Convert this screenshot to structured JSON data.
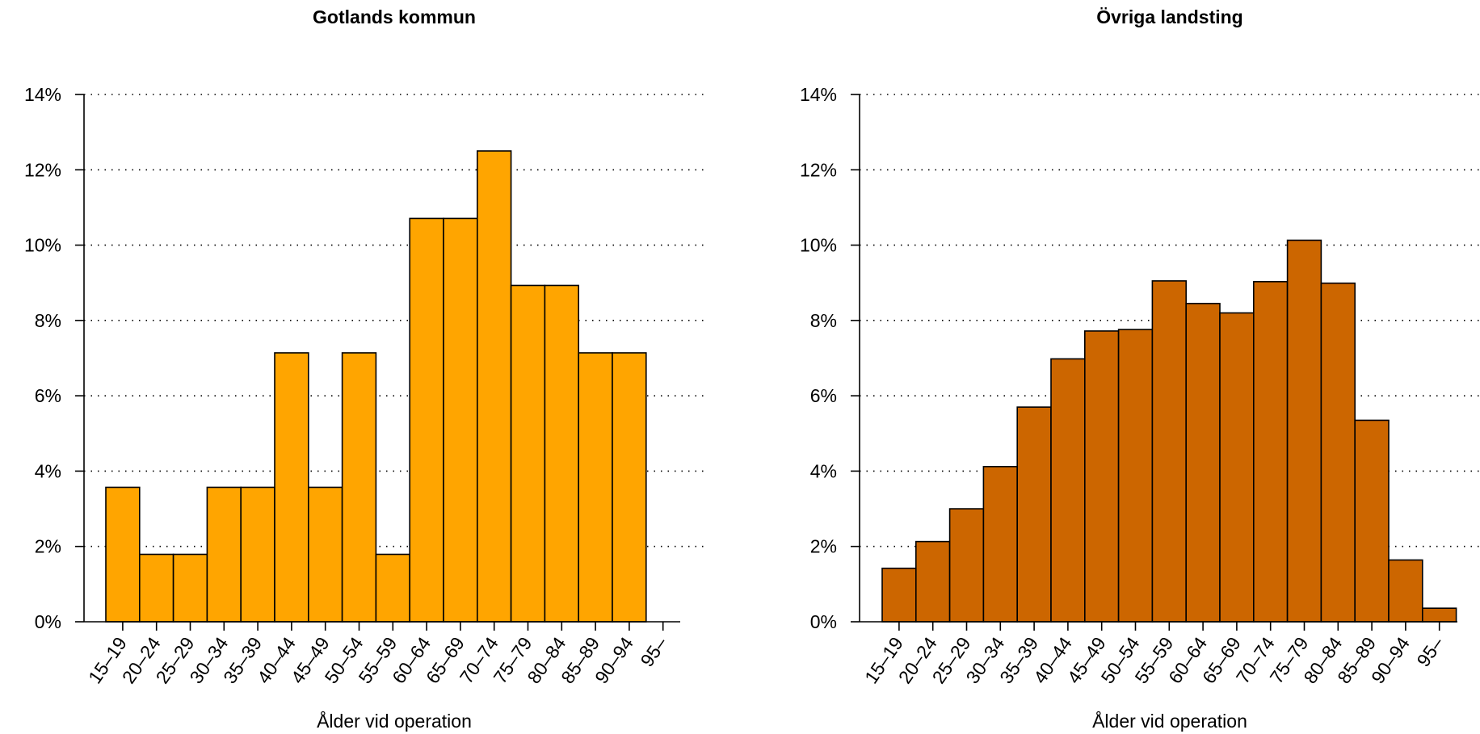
{
  "chart_data": [
    {
      "type": "bar",
      "title": "Gotlands kommun",
      "xlabel": "Ålder vid operation",
      "ylabel": "",
      "categories": [
        "15–19",
        "20–24",
        "25–29",
        "30–34",
        "35–39",
        "40–44",
        "45–49",
        "50–54",
        "55–59",
        "60–64",
        "65–69",
        "70–74",
        "75–79",
        "80–84",
        "85–89",
        "90–94",
        "95–"
      ],
      "values": [
        3.57,
        1.79,
        1.79,
        3.57,
        3.57,
        7.14,
        3.57,
        7.14,
        1.79,
        10.71,
        10.71,
        12.5,
        8.93,
        8.93,
        7.14,
        7.14,
        0
      ],
      "ylim": [
        0,
        14
      ],
      "yticks": [
        0,
        2,
        4,
        6,
        8,
        10,
        12,
        14
      ],
      "ytick_labels": [
        "0%",
        "2%",
        "4%",
        "6%",
        "8%",
        "10%",
        "12%",
        "14%"
      ],
      "color": "#FFA500",
      "grid": "horizontal dotted"
    },
    {
      "type": "bar",
      "title": "Övriga landsting",
      "xlabel": "Ålder vid operation",
      "ylabel": "",
      "categories": [
        "15–19",
        "20–24",
        "25–29",
        "30–34",
        "35–39",
        "40–44",
        "45–49",
        "50–54",
        "55–59",
        "60–64",
        "65–69",
        "70–74",
        "75–79",
        "80–84",
        "85–89",
        "90–94",
        "95–"
      ],
      "values": [
        1.42,
        2.13,
        3.0,
        4.12,
        5.7,
        6.98,
        7.72,
        7.76,
        9.05,
        8.45,
        8.2,
        9.03,
        10.13,
        8.99,
        5.35,
        1.64,
        0.36
      ],
      "ylim": [
        0,
        14
      ],
      "yticks": [
        0,
        2,
        4,
        6,
        8,
        10,
        12,
        14
      ],
      "ytick_labels": [
        "0%",
        "2%",
        "4%",
        "6%",
        "8%",
        "10%",
        "12%",
        "14%"
      ],
      "color": "#CC6600",
      "grid": "horizontal dotted"
    }
  ]
}
